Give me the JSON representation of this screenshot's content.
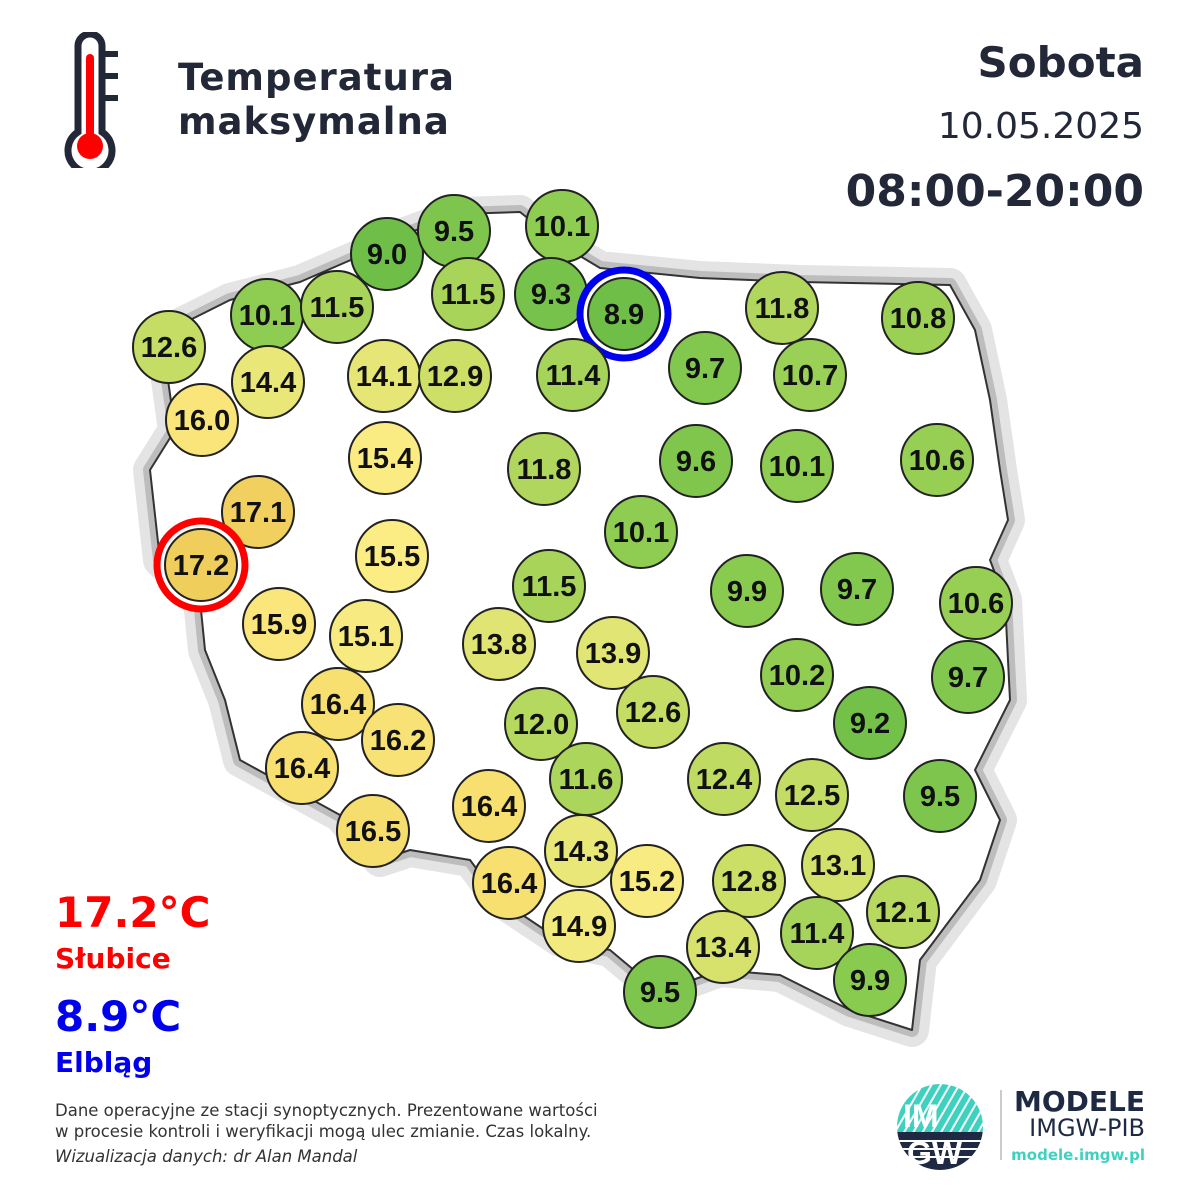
{
  "header": {
    "title_line1": "Temperatura",
    "title_line2": "maksymalna",
    "day": "Sobota",
    "date": "10.05.2025",
    "hours": "08:00-20:00",
    "icon": "thermometer-icon"
  },
  "extremes": {
    "max_value": "17.2°C",
    "max_station": "Słubice",
    "max_color": "#ff0000",
    "min_value": "8.9°C",
    "min_station": "Elbląg",
    "min_color": "#0000ee"
  },
  "stations": [
    "9.0",
    "9.5",
    "10.1",
    "10.1",
    "11.5",
    "11.5",
    "9.3",
    "8.9",
    "11.8",
    "10.8",
    "12.6",
    "14.4",
    "14.1",
    "12.9",
    "11.4",
    "9.7",
    "10.7",
    "16.0",
    "15.4",
    "11.8",
    "9.6",
    "10.1",
    "10.6",
    "17.1",
    "10.1",
    "17.2",
    "15.5",
    "11.5",
    "9.9",
    "9.7",
    "10.6",
    "15.9",
    "15.1",
    "13.8",
    "13.9",
    "10.2",
    "9.7",
    "16.4",
    "16.2",
    "12.0",
    "12.6",
    "9.2",
    "16.4",
    "11.6",
    "12.4",
    "12.5",
    "9.5",
    "16.5",
    "16.4",
    "14.3",
    "15.2",
    "12.8",
    "13.1",
    "16.4",
    "12.1",
    "14.9",
    "13.4",
    "11.4",
    "9.9",
    "9.5"
  ],
  "footer": {
    "note_line1": "Dane operacyjne ze stacji synoptycznych. Prezentowane wartości",
    "note_line2": "w procesie kontroli i weryfikacji mogą ulec zmianie. Czas lokalny.",
    "credit": "Wizualizacja danych: dr Alan Mandal"
  },
  "logo": {
    "text_top": "IM",
    "text_bottom": "GW",
    "brand": "MODELE",
    "org": "IMGW-PIB",
    "url": "modele.imgw.pl",
    "accent": "#3fd1bf"
  }
}
